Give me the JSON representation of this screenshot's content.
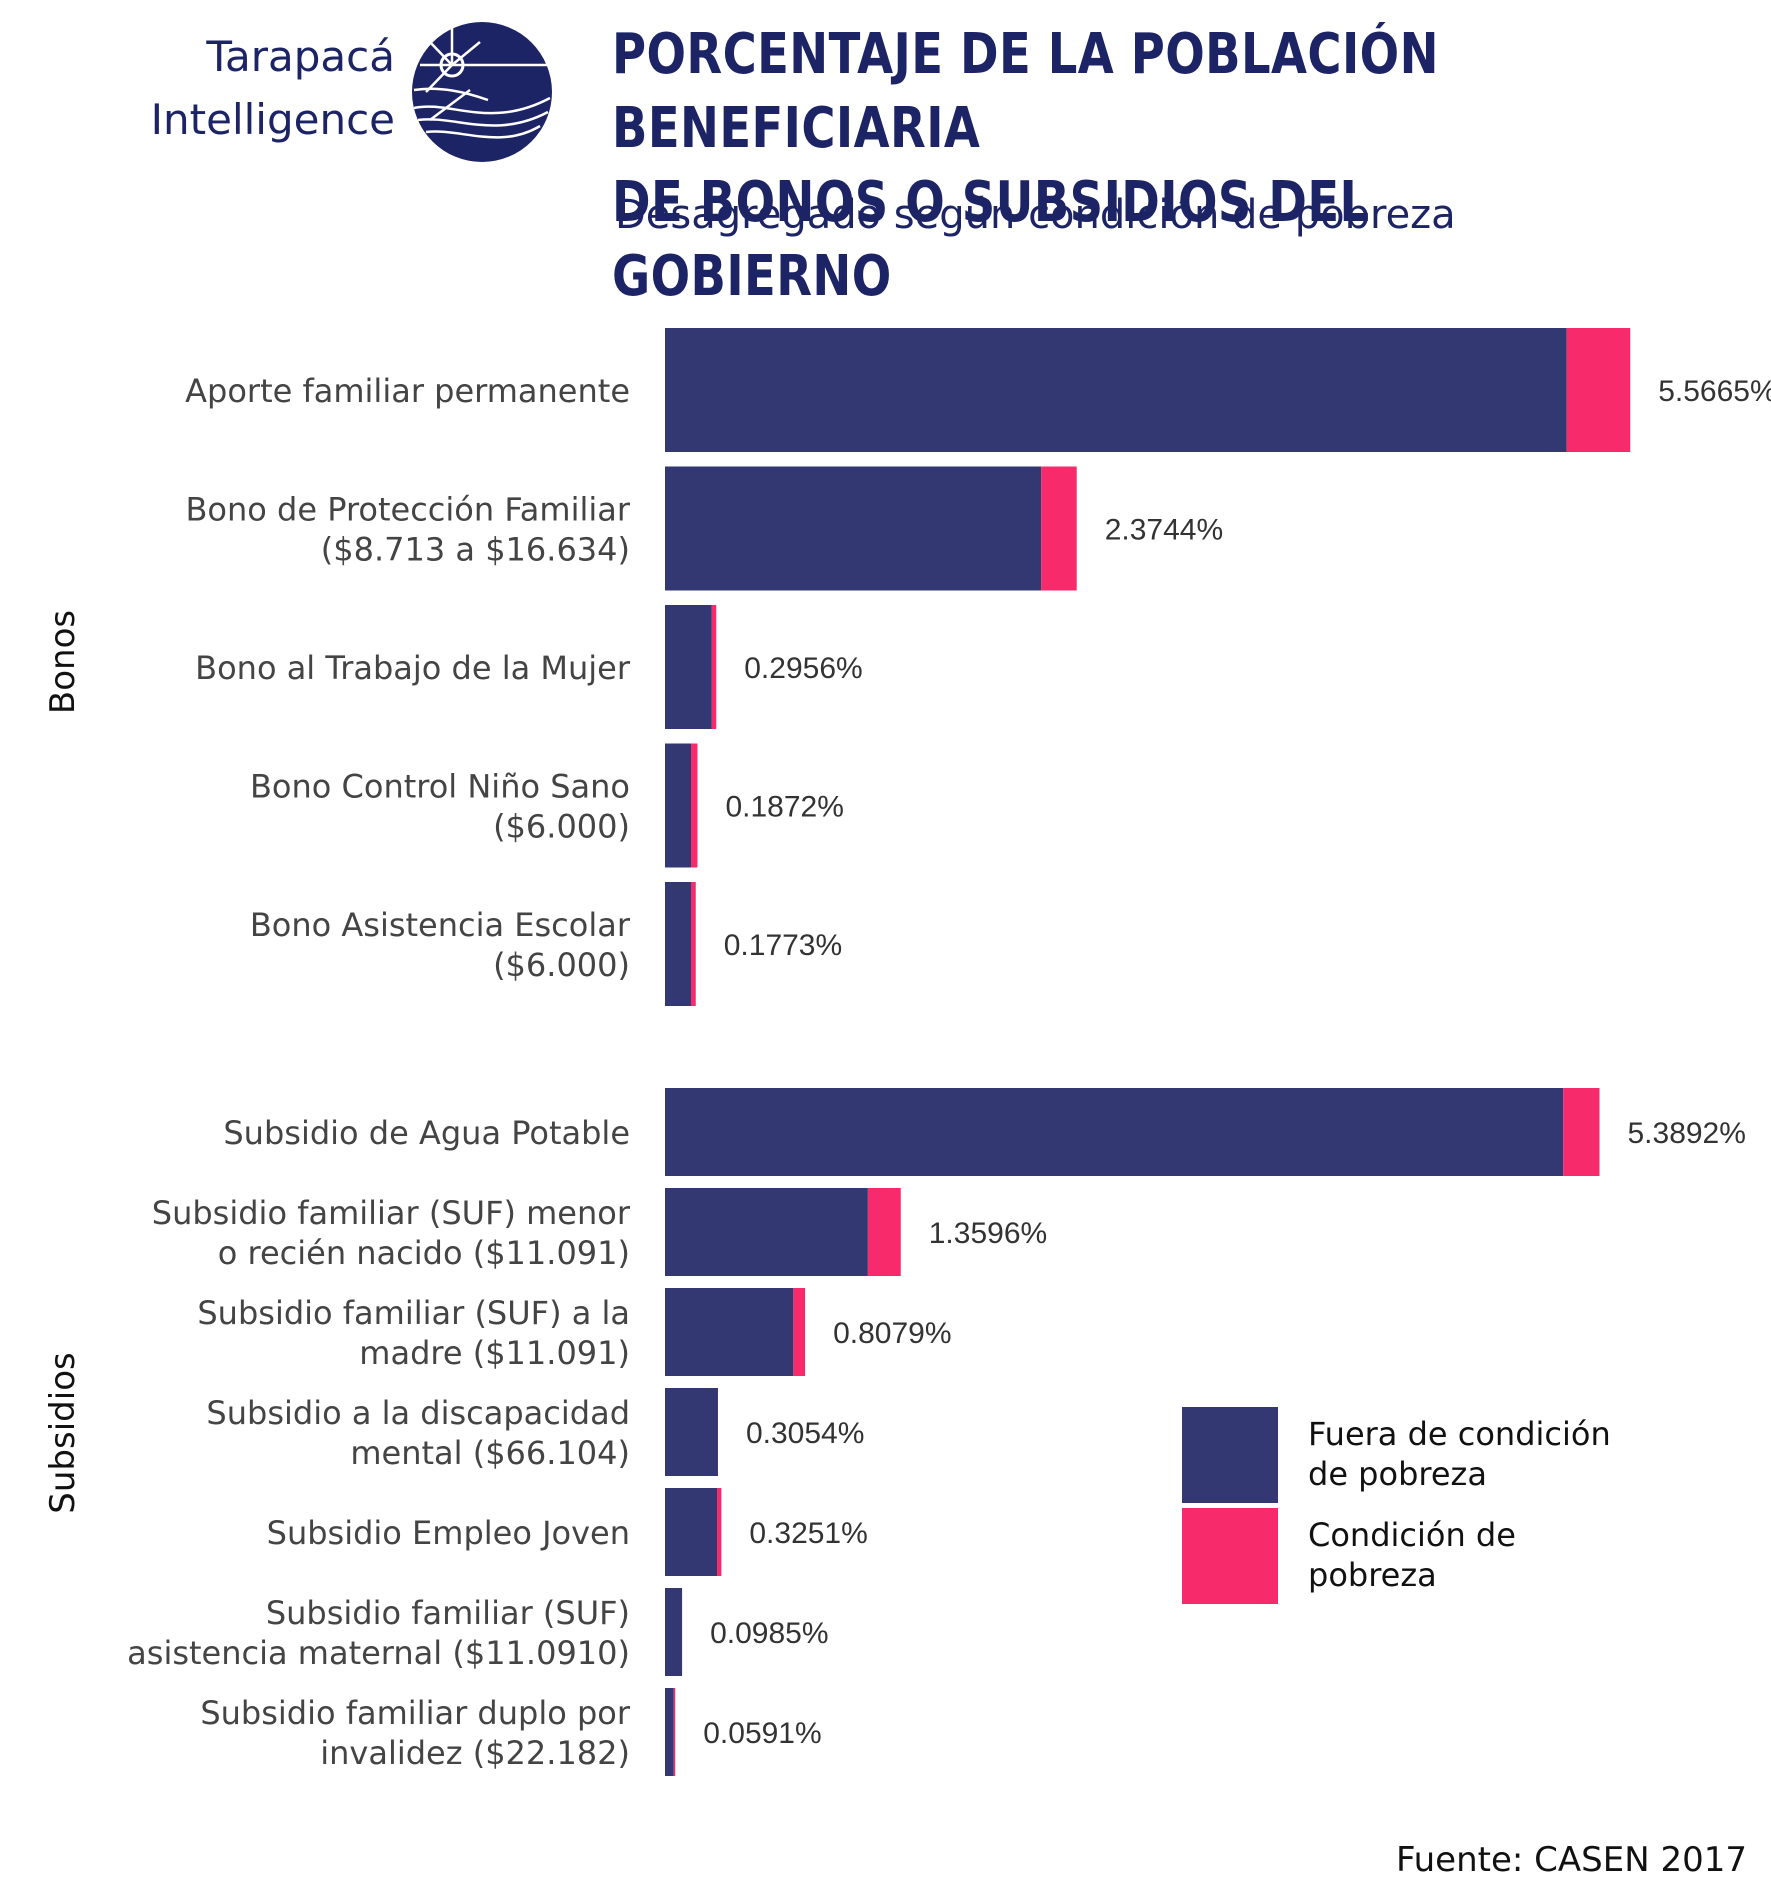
{
  "logo": {
    "line1": "Tarapacá",
    "line2": "Intelligence"
  },
  "header": {
    "title_line1": "PORCENTAJE DE LA POBLACIÓN BENEFICIARIA",
    "title_line2": "DE BONOS O SUBSIDIOS DEL GOBIERNO",
    "subtitle": "Desagregado según condición de pobreza"
  },
  "source": "Fuente: CASEN 2017",
  "colors": {
    "not_poor": "#333872",
    "poor": "#f72a6b",
    "title": "#1d2466"
  },
  "chart_data": {
    "type": "bar",
    "orientation": "horizontal",
    "stacked": true,
    "grid": false,
    "legend_placement": "bottom-right",
    "series": [
      {
        "name": "Fuera de condición de pobreza",
        "color": "#333872"
      },
      {
        "name": "Condición de pobreza",
        "color": "#f72a6b"
      }
    ],
    "legend": [
      {
        "label_lines": [
          "Fuera de condición",
          "de pobreza"
        ],
        "color": "#333872"
      },
      {
        "label_lines": [
          "Condición de",
          "pobreza"
        ],
        "color": "#f72a6b"
      }
    ],
    "groups": [
      {
        "name": "Bonos",
        "items": [
          {
            "label_lines": [
              "Aporte familiar permanente"
            ],
            "not_poor": 5.2,
            "poor": 0.3665,
            "total": 5.5665,
            "total_label": "5.5665%"
          },
          {
            "label_lines": [
              "Bono de Protección Familiar",
              "($8.713 a $16.634)"
            ],
            "not_poor": 2.17,
            "poor": 0.2044,
            "total": 2.3744,
            "total_label": "2.3744%"
          },
          {
            "label_lines": [
              "Bono al Trabajo de la Mujer"
            ],
            "not_poor": 0.27,
            "poor": 0.0256,
            "total": 0.2956,
            "total_label": "0.2956%"
          },
          {
            "label_lines": [
              "Bono Control Niño Sano",
              "($6.000)"
            ],
            "not_poor": 0.15,
            "poor": 0.0372,
            "total": 0.1872,
            "total_label": "0.1872%"
          },
          {
            "label_lines": [
              "Bono Asistencia Escolar",
              "($6.000)"
            ],
            "not_poor": 0.15,
            "poor": 0.0273,
            "total": 0.1773,
            "total_label": "0.1773%"
          }
        ]
      },
      {
        "name": "Subsidios",
        "items": [
          {
            "label_lines": [
              "Subsidio de Agua Potable"
            ],
            "not_poor": 5.18,
            "poor": 0.2092,
            "total": 5.3892,
            "total_label": "5.3892%"
          },
          {
            "label_lines": [
              "Subsidio familiar (SUF) menor",
              "o recién nacido ($11.091)"
            ],
            "not_poor": 1.17,
            "poor": 0.1896,
            "total": 1.3596,
            "total_label": "1.3596%"
          },
          {
            "label_lines": [
              "Subsidio familiar (SUF) a la",
              "madre ($11.091)"
            ],
            "not_poor": 0.74,
            "poor": 0.0679,
            "total": 0.8079,
            "total_label": "0.8079%"
          },
          {
            "label_lines": [
              "Subsidio a la discapacidad",
              "mental ($66.104)"
            ],
            "not_poor": 0.3054,
            "poor": 0.0,
            "total": 0.3054,
            "total_label": "0.3054%"
          },
          {
            "label_lines": [
              "Subsidio Empleo Joven"
            ],
            "not_poor": 0.3,
            "poor": 0.0251,
            "total": 0.3251,
            "total_label": "0.3251%"
          },
          {
            "label_lines": [
              "Subsidio familiar (SUF)",
              "asistencia maternal ($11.0910)"
            ],
            "not_poor": 0.0985,
            "poor": 0.0,
            "total": 0.0985,
            "total_label": "0.0985%"
          },
          {
            "label_lines": [
              "Subsidio familiar duplo por",
              "invalidez ($22.182)"
            ],
            "not_poor": 0.05,
            "poor": 0.0091,
            "total": 0.0591,
            "total_label": "0.0591%"
          }
        ]
      }
    ]
  }
}
